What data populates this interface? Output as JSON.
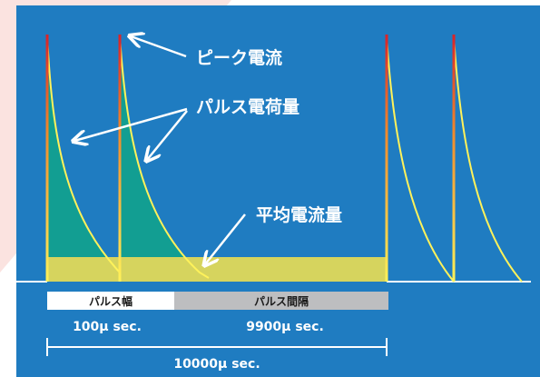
{
  "colors": {
    "page_background": "#FFFFFF",
    "accent_corner": "#FBE3E0",
    "panel_background": "#1F7CC1",
    "waveform_line": "#FFFFFF",
    "pulse_peak": "#D8232A",
    "pulse_mid": "#F08A2C",
    "pulse_base": "#FFF25A",
    "pulse_charge_fill": "#129E92",
    "average_current_fill": "#D6D45E",
    "pulse_width_box": "#FFFFFF",
    "pulse_interval_box": "#BDBEC0",
    "label_dark_text": "#1A1A1A"
  },
  "labels": {
    "peak_current": "ピーク電流",
    "pulse_charge": "パルス電荷量",
    "average_current": "平均電流量",
    "pulse_width": "パルス幅",
    "pulse_interval": "パルス間隔",
    "pulse_width_time": "100μ sec.",
    "pulse_interval_time": "9900μ sec.",
    "period_time": "10000μ sec."
  }
}
